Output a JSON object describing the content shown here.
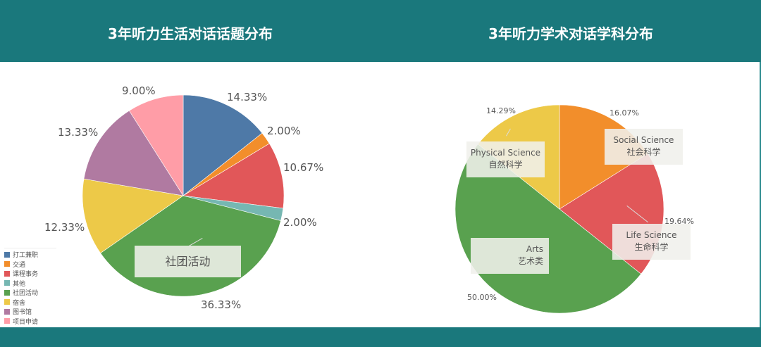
{
  "header": {
    "left_title": "3年听力生活对话话题分布",
    "right_title": "3年听力学术对话学科分布",
    "background_color": "#1a787c"
  },
  "chart_data": [
    {
      "type": "pie",
      "title": "3年听力生活对话话题分布",
      "start_angle": "12 o'clock, clockwise",
      "categories": [
        "打工兼职",
        "交通",
        "课程事务",
        "其他",
        "社团活动",
        "宿舍",
        "图书馆",
        "项目申请"
      ],
      "values": [
        14.33,
        2.0,
        10.67,
        2.0,
        36.33,
        12.33,
        13.33,
        9.0
      ],
      "labels": [
        "14.33%",
        "2.00%",
        "10.67%",
        "2.00%",
        "36.33%",
        "12.33%",
        "13.33%",
        "9.00%"
      ],
      "colors": [
        "#4e79a7",
        "#f28e2b",
        "#e15759",
        "#76b7b2",
        "#59a14f",
        "#edc948",
        "#b07aa1",
        "#ff9da7"
      ],
      "legend_position": "bottom-left",
      "annotation": "社团活动"
    },
    {
      "type": "pie",
      "title": "3年听力学术对话学科分布",
      "start_angle": "12 o'clock, clockwise",
      "categories": [
        "Social Science 社会科学",
        "Life Science 生命科学",
        "Arts 艺术类",
        "Physical Science 自然科学"
      ],
      "values": [
        16.07,
        19.64,
        50.0,
        14.29
      ],
      "labels": [
        "16.07%",
        "19.64%",
        "50.00%",
        "14.29%"
      ],
      "colors": [
        "#f28e2b",
        "#e15759",
        "#59a14f",
        "#edc948"
      ],
      "annotations": [
        {
          "en": "Social Science",
          "zh": "社会科学"
        },
        {
          "en": "Life Science",
          "zh": "生命科学"
        },
        {
          "en": "Arts",
          "zh": "艺术类"
        },
        {
          "en": "Physical Science",
          "zh": "自然科学"
        }
      ]
    }
  ],
  "left_chart": {
    "legend": [
      {
        "label": "打工兼职",
        "color": "#4e79a7"
      },
      {
        "label": "交通",
        "color": "#f28e2b"
      },
      {
        "label": "课程事务",
        "color": "#e15759"
      },
      {
        "label": "其他",
        "color": "#76b7b2"
      },
      {
        "label": "社团活动",
        "color": "#59a14f"
      },
      {
        "label": "宿舍",
        "color": "#edc948"
      },
      {
        "label": "图书馆",
        "color": "#b07aa1"
      },
      {
        "label": "项目申请",
        "color": "#ff9da7"
      }
    ],
    "callout": "社团活动"
  },
  "right_chart": {
    "callouts": {
      "social_en": "Social Science",
      "social_zh": "社会科学",
      "life_en": "Life Science",
      "life_zh": "生命科学",
      "arts_en": "Arts",
      "arts_zh": "艺术类",
      "physical_en": "Physical Science",
      "physical_zh": "自然科学"
    }
  }
}
